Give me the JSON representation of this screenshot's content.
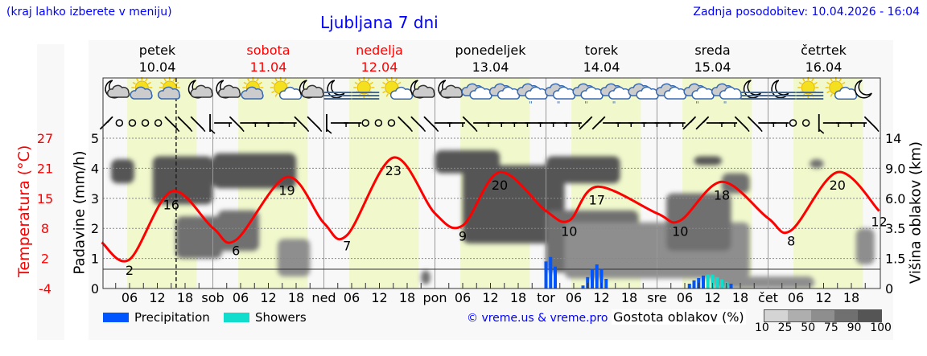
{
  "header": {
    "hint": "(kraj lahko izberete v meniju)",
    "title": "Ljubljana 7 dni",
    "updated": "Zadnja posodobitev: 10.04.2026 - 16:04"
  },
  "days": [
    {
      "name": "petek",
      "date": "10.04",
      "color": "#000000",
      "abbr": ""
    },
    {
      "name": "sobota",
      "date": "11.04",
      "color": "#ff0000",
      "abbr": "sob"
    },
    {
      "name": "nedelja",
      "date": "12.04",
      "color": "#ff0000",
      "abbr": "ned"
    },
    {
      "name": "ponedeljek",
      "date": "13.04",
      "color": "#000000",
      "abbr": "pon"
    },
    {
      "name": "torek",
      "date": "14.04",
      "color": "#000000",
      "abbr": "tor"
    },
    {
      "name": "sreda",
      "date": "15.04",
      "color": "#000000",
      "abbr": "sre"
    },
    {
      "name": "četrtek",
      "date": "16.04",
      "color": "#000000",
      "abbr": "čet"
    }
  ],
  "hour_ticks": [
    "06",
    "12",
    "18"
  ],
  "chart_data": {
    "type": "line",
    "start": "2026-04-10T00:00",
    "now": "2026-04-10T16:04",
    "temperature": {
      "label": "Temperatura (°C)",
      "ticks": [
        "27",
        "21",
        "15",
        "8",
        "2",
        "-4"
      ],
      "ylim": [
        -4,
        27
      ],
      "color": "#ff0000",
      "points": [
        {
          "t": "2026-04-10T00:00",
          "v": 5.5
        },
        {
          "t": "2026-04-10T06:00",
          "v": 2,
          "label": "2"
        },
        {
          "t": "2026-04-10T15:00",
          "v": 16,
          "label": "16"
        },
        {
          "t": "2026-04-11T00:00",
          "v": 8.5
        },
        {
          "t": "2026-04-11T05:00",
          "v": 6,
          "label": "6"
        },
        {
          "t": "2026-04-11T16:00",
          "v": 19,
          "label": "19"
        },
        {
          "t": "2026-04-12T00:00",
          "v": 9.5
        },
        {
          "t": "2026-04-12T05:00",
          "v": 7,
          "label": "7"
        },
        {
          "t": "2026-04-12T15:00",
          "v": 23,
          "label": "23"
        },
        {
          "t": "2026-04-13T00:00",
          "v": 11.5
        },
        {
          "t": "2026-04-13T06:00",
          "v": 9,
          "label": "9"
        },
        {
          "t": "2026-04-13T14:00",
          "v": 20,
          "label": "20"
        },
        {
          "t": "2026-04-14T00:00",
          "v": 12
        },
        {
          "t": "2026-04-14T05:00",
          "v": 10,
          "label": "10"
        },
        {
          "t": "2026-04-14T11:00",
          "v": 17,
          "label": "17"
        },
        {
          "t": "2026-04-15T00:00",
          "v": 11.5
        },
        {
          "t": "2026-04-15T05:00",
          "v": 10,
          "label": "10"
        },
        {
          "t": "2026-04-15T14:00",
          "v": 18,
          "label": "18"
        },
        {
          "t": "2026-04-16T00:00",
          "v": 10.5
        },
        {
          "t": "2026-04-16T05:00",
          "v": 8,
          "label": "8"
        },
        {
          "t": "2026-04-16T15:00",
          "v": 20,
          "label": "20"
        },
        {
          "t": "2026-04-17T00:00",
          "v": 12,
          "label": "12"
        }
      ]
    },
    "precipitation": {
      "label": "Padavine (mm/h)",
      "ticks": [
        "0",
        "1",
        "2",
        "3",
        "4",
        "5"
      ],
      "ylim": [
        0,
        5
      ],
      "colors": {
        "rain": "#0055ff",
        "showers": "#11ddcc"
      },
      "bars": [
        {
          "t": "2026-04-14T00:00",
          "mm": 0.9,
          "kind": "rain"
        },
        {
          "t": "2026-04-14T01:00",
          "mm": 1.05,
          "kind": "rain"
        },
        {
          "t": "2026-04-14T02:00",
          "mm": 0.73,
          "kind": "rain"
        },
        {
          "t": "2026-04-14T08:00",
          "mm": 0.1,
          "kind": "rain"
        },
        {
          "t": "2026-04-14T09:00",
          "mm": 0.38,
          "kind": "rain"
        },
        {
          "t": "2026-04-14T10:00",
          "mm": 0.65,
          "kind": "rain"
        },
        {
          "t": "2026-04-14T11:00",
          "mm": 0.8,
          "kind": "rain"
        },
        {
          "t": "2026-04-14T12:00",
          "mm": 0.65,
          "kind": "rain"
        },
        {
          "t": "2026-04-14T13:00",
          "mm": 0.32,
          "kind": "rain"
        },
        {
          "t": "2026-04-15T07:00",
          "mm": 0.16,
          "kind": "rain"
        },
        {
          "t": "2026-04-15T08:00",
          "mm": 0.27,
          "kind": "rain"
        },
        {
          "t": "2026-04-15T09:00",
          "mm": 0.35,
          "kind": "rain"
        },
        {
          "t": "2026-04-15T10:00",
          "mm": 0.43,
          "kind": "rain"
        },
        {
          "t": "2026-04-15T11:00",
          "mm": 0.46,
          "kind": "showers"
        },
        {
          "t": "2026-04-15T12:00",
          "mm": 0.46,
          "kind": "showers"
        },
        {
          "t": "2026-04-15T13:00",
          "mm": 0.38,
          "kind": "showers"
        },
        {
          "t": "2026-04-15T14:00",
          "mm": 0.3,
          "kind": "showers"
        },
        {
          "t": "2026-04-15T15:00",
          "mm": 0.22,
          "kind": "showers"
        },
        {
          "t": "2026-04-15T16:00",
          "mm": 0.16,
          "kind": "rain"
        }
      ]
    },
    "cloud_height": {
      "label": "Višina oblakov (km)",
      "ticks": [
        "0",
        "1.5",
        "3.5",
        "6.0",
        "9.0",
        "14"
      ],
      "cloud_blobs": [
        {
          "from": "2026-04-10T02:00",
          "to": "2026-04-10T07:00",
          "km": [
            7.5,
            10.5
          ],
          "density": 90
        },
        {
          "from": "2026-04-10T11:00",
          "to": "2026-04-11T00:00",
          "km": [
            5.5,
            11
          ],
          "density": 90
        },
        {
          "from": "2026-04-10T16:00",
          "to": "2026-04-11T02:00",
          "km": [
            1.5,
            4.5
          ],
          "density": 75
        },
        {
          "from": "2026-04-11T00:00",
          "to": "2026-04-11T18:00",
          "km": [
            7,
            11.5
          ],
          "density": 90
        },
        {
          "from": "2026-04-11T01:00",
          "to": "2026-04-11T10:00",
          "km": [
            2,
            5
          ],
          "density": 75
        },
        {
          "from": "2026-04-11T14:00",
          "to": "2026-04-11T21:00",
          "km": [
            0.6,
            2.8
          ],
          "density": 50
        },
        {
          "from": "2026-04-12T21:00",
          "to": "2026-04-12T23:00",
          "km": [
            0.2,
            0.9
          ],
          "density": 75
        },
        {
          "from": "2026-04-13T00:00",
          "to": "2026-04-13T14:00",
          "km": [
            8.5,
            12
          ],
          "density": 90
        },
        {
          "from": "2026-04-13T06:00",
          "to": "2026-04-14T04:00",
          "km": [
            2.5,
            9.5
          ],
          "density": 90
        },
        {
          "from": "2026-04-14T00:00",
          "to": "2026-04-14T20:00",
          "km": [
            0.8,
            5
          ],
          "density": 75
        },
        {
          "from": "2026-04-14T00:00",
          "to": "2026-04-14T16:00",
          "km": [
            7.5,
            11
          ],
          "density": 90
        },
        {
          "from": "2026-04-14T04:00",
          "to": "2026-04-15T20:00",
          "km": [
            0.5,
            4
          ],
          "density": 50
        },
        {
          "from": "2026-04-15T02:00",
          "to": "2026-04-15T16:00",
          "km": [
            2,
            6.5
          ],
          "density": 75
        },
        {
          "from": "2026-04-15T08:00",
          "to": "2026-04-15T14:00",
          "km": [
            9.5,
            11
          ],
          "density": 90
        },
        {
          "from": "2026-04-15T14:00",
          "to": "2026-04-15T20:00",
          "km": [
            6.5,
            8.5
          ],
          "density": 75
        },
        {
          "from": "2026-04-16T09:00",
          "to": "2026-04-16T12:00",
          "km": [
            9,
            10.5
          ],
          "density": 75
        },
        {
          "from": "2026-04-16T19:00",
          "to": "2026-04-16T23:00",
          "km": [
            1.2,
            3.5
          ],
          "density": 50
        },
        {
          "from": "2026-04-15T12:00",
          "to": "2026-04-16T10:00",
          "km": [
            0,
            0.6
          ],
          "density": 50
        }
      ]
    },
    "weather_icons": [
      "moon-cloud",
      "sun-cloud",
      "sun-cloud",
      "moon-cloud",
      "moon-cloud",
      "sun-cloud",
      "sun-small-cloud",
      "moon-cloud",
      "moon-fog",
      "sun-fog",
      "sun-small-cloud",
      "moon-cloud",
      "moon-cloud",
      "overcast",
      "overcast",
      "cloud-rain",
      "cloud-rain",
      "cloud-rain",
      "cloud-rain",
      "overcast",
      "overcast",
      "cloud-rain",
      "cloud-rain",
      "moon-fog",
      "moon-fog",
      "sun-fog",
      "sun-small-cloud",
      "moon"
    ],
    "wind": [
      "SW",
      "calm",
      "calm",
      "calm",
      "calm",
      "NW",
      "NW",
      "NW",
      "N",
      "W",
      "NW",
      "W",
      "W",
      "E",
      "W",
      "NW",
      "NW",
      "N",
      "W",
      "W",
      "calm",
      "calm",
      "calm",
      "NW",
      "NW",
      "NW",
      "W",
      "W",
      "NW",
      "W",
      "W",
      "W",
      "W",
      "W",
      "W",
      "W",
      "W",
      "SW",
      "SW",
      "W",
      "W",
      "W",
      "W",
      "W",
      "W",
      "SW",
      "SW",
      "W",
      "W",
      "NW",
      "NW",
      "W",
      "W",
      "calm",
      "calm",
      "N",
      "W",
      "W",
      "W",
      "NW"
    ]
  },
  "legend": {
    "precipitation": "Precipitation",
    "showers": "Showers",
    "credit": "© vreme.us & vreme.pro",
    "density_title": "Gostota oblakov (%)",
    "density_levels": [
      "10",
      "25",
      "50",
      "75",
      "90",
      "100"
    ],
    "density_colors": [
      "#d4d4d4",
      "#aeaeae",
      "#8e8e8e",
      "#707070",
      "#555555"
    ]
  }
}
